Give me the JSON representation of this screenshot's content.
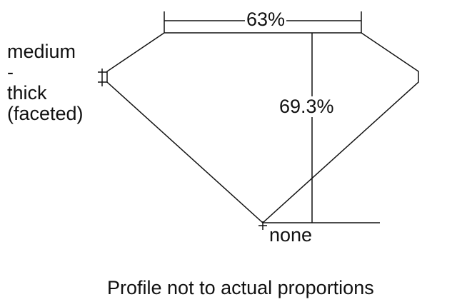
{
  "girdle_label": [
    "medium",
    "-",
    "thick",
    "(faceted)"
  ],
  "table_percent": "63%",
  "depth_percent": "69.3%",
  "culet_label": "none",
  "note": "Profile not to actual proportions",
  "line_color": "#111111"
}
